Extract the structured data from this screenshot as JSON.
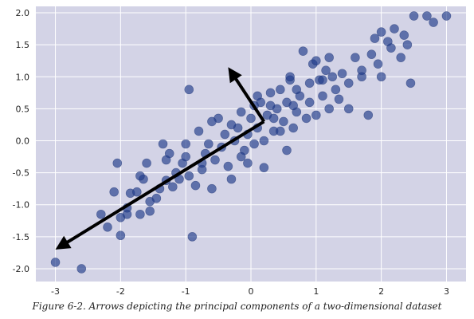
{
  "caption": "Figure 6-2. Arrows depicting the principal components of a two-dimensional dataset",
  "chart_data": {
    "type": "scatter",
    "title": "",
    "xlabel": "",
    "ylabel": "",
    "xlim": [
      -3.3,
      3.3
    ],
    "ylim": [
      -2.2,
      2.1
    ],
    "grid": true,
    "xticks": [
      -3,
      -2,
      -1,
      0,
      1,
      2,
      3
    ],
    "yticks": [
      -2.0,
      -1.5,
      -1.0,
      -0.5,
      0.0,
      0.5,
      1.0,
      1.5,
      2.0
    ],
    "colors": {
      "background": "#d3d3e6",
      "grid": "#ffffff",
      "points": "#1f3a8a",
      "arrows": "#000000"
    },
    "points": [
      [
        -3.0,
        -1.9
      ],
      [
        -2.6,
        -2.0
      ],
      [
        -2.3,
        -1.15
      ],
      [
        -2.0,
        -1.48
      ],
      [
        -2.0,
        -1.2
      ],
      [
        -1.9,
        -1.05
      ],
      [
        -1.7,
        -1.15
      ],
      [
        -1.55,
        -1.1
      ],
      [
        -1.85,
        -0.82
      ],
      [
        -1.75,
        -0.8
      ],
      [
        -1.65,
        -0.6
      ],
      [
        -1.45,
        -0.9
      ],
      [
        -1.4,
        -0.75
      ],
      [
        -1.3,
        -0.62
      ],
      [
        -1.2,
        -0.72
      ],
      [
        -1.15,
        -0.5
      ],
      [
        -1.05,
        -0.35
      ],
      [
        -1.0,
        -0.25
      ],
      [
        -0.95,
        -0.55
      ],
      [
        -0.85,
        -0.7
      ],
      [
        -0.75,
        -0.45
      ],
      [
        -0.7,
        -0.2
      ],
      [
        -0.65,
        -0.05
      ],
      [
        -0.55,
        -0.3
      ],
      [
        -0.45,
        -0.1
      ],
      [
        -0.4,
        0.1
      ],
      [
        -0.35,
        -0.4
      ],
      [
        -0.3,
        -0.6
      ],
      [
        -0.25,
        0.0
      ],
      [
        -0.2,
        0.2
      ],
      [
        -0.15,
        0.45
      ],
      [
        -0.1,
        -0.15
      ],
      [
        -0.05,
        0.1
      ],
      [
        0.0,
        0.35
      ],
      [
        0.05,
        -0.05
      ],
      [
        0.1,
        0.2
      ],
      [
        0.15,
        0.6
      ],
      [
        0.2,
        0.0
      ],
      [
        0.25,
        0.4
      ],
      [
        0.3,
        0.75
      ],
      [
        0.35,
        0.15
      ],
      [
        0.4,
        0.5
      ],
      [
        0.45,
        0.8
      ],
      [
        0.5,
        0.3
      ],
      [
        0.55,
        0.6
      ],
      [
        0.6,
        0.95
      ],
      [
        0.65,
        0.2
      ],
      [
        0.7,
        0.45
      ],
      [
        0.75,
        0.7
      ],
      [
        0.8,
        1.4
      ],
      [
        0.85,
        0.35
      ],
      [
        0.9,
        0.6
      ],
      [
        0.95,
        1.2
      ],
      [
        1.0,
        0.4
      ],
      [
        1.05,
        0.95
      ],
      [
        1.1,
        0.7
      ],
      [
        1.15,
        1.1
      ],
      [
        1.2,
        0.5
      ],
      [
        1.25,
        1.0
      ],
      [
        1.3,
        0.8
      ],
      [
        1.4,
        1.05
      ],
      [
        1.5,
        0.9
      ],
      [
        1.6,
        1.3
      ],
      [
        1.7,
        1.1
      ],
      [
        1.8,
        0.4
      ],
      [
        1.9,
        1.6
      ],
      [
        1.95,
        1.2
      ],
      [
        2.0,
        1.0
      ],
      [
        2.1,
        1.55
      ],
      [
        2.2,
        1.75
      ],
      [
        2.3,
        1.3
      ],
      [
        2.4,
        1.5
      ],
      [
        2.45,
        0.9
      ],
      [
        2.5,
        1.95
      ],
      [
        2.7,
        1.95
      ],
      [
        2.8,
        1.85
      ],
      [
        3.0,
        1.95
      ],
      [
        -0.95,
        0.8
      ],
      [
        -0.9,
        -1.5
      ],
      [
        -2.1,
        -0.8
      ],
      [
        -1.6,
        -0.35
      ],
      [
        -2.05,
        -0.35
      ],
      [
        -1.25,
        -0.2
      ],
      [
        -0.6,
        -0.75
      ],
      [
        0.2,
        -0.42
      ],
      [
        -1.35,
        -0.05
      ],
      [
        -0.8,
        0.15
      ],
      [
        -0.5,
        0.35
      ],
      [
        0.55,
        -0.15
      ],
      [
        1.5,
        0.5
      ],
      [
        2.35,
        1.65
      ],
      [
        1.0,
        1.25
      ],
      [
        -1.55,
        -0.95
      ],
      [
        -0.05,
        -0.35
      ],
      [
        0.6,
        1.0
      ],
      [
        -2.2,
        -1.35
      ],
      [
        -1.9,
        -1.15
      ],
      [
        -1.1,
        -0.6
      ],
      [
        -0.3,
        0.25
      ],
      [
        0.3,
        0.55
      ],
      [
        0.7,
        0.8
      ],
      [
        1.2,
        1.3
      ],
      [
        1.7,
        1.0
      ],
      [
        2.15,
        1.45
      ],
      [
        -0.6,
        0.3
      ],
      [
        0.1,
        0.7
      ],
      [
        0.45,
        0.15
      ],
      [
        0.9,
        0.9
      ],
      [
        1.35,
        0.65
      ],
      [
        1.85,
        1.35
      ],
      [
        -1.0,
        -0.05
      ],
      [
        -0.15,
        -0.25
      ],
      [
        0.35,
        0.35
      ],
      [
        -1.7,
        -0.55
      ],
      [
        -1.3,
        -0.3
      ],
      [
        -0.75,
        -0.35
      ],
      [
        0.05,
        0.55
      ],
      [
        0.65,
        0.55
      ],
      [
        1.1,
        0.95
      ],
      [
        2.0,
        1.7
      ]
    ],
    "arrows": [
      {
        "from": [
          0.2,
          0.3
        ],
        "to": [
          -3.0,
          -1.7
        ]
      },
      {
        "from": [
          0.2,
          0.3
        ],
        "to": [
          -0.35,
          1.15
        ]
      }
    ]
  }
}
